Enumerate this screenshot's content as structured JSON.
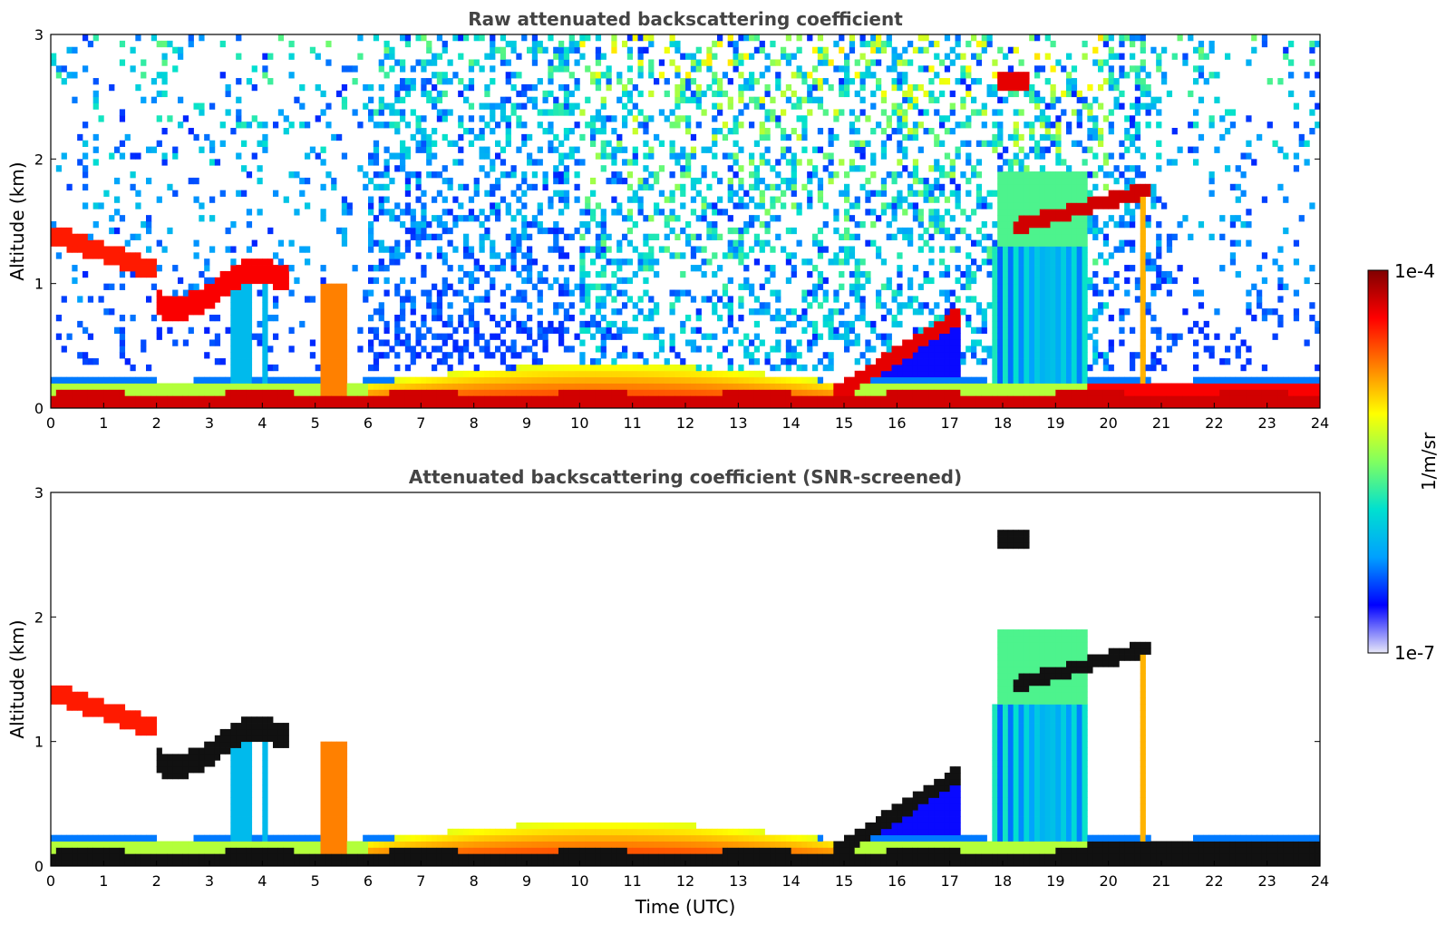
{
  "chart_data": [
    {
      "type": "heatmap",
      "title": "Raw attenuated backscattering coefficient",
      "xlabel": "",
      "ylabel": "Altitude (km)",
      "xlim": [
        0,
        24
      ],
      "ylim": [
        0,
        3
      ],
      "x_ticks": [
        "0",
        "1",
        "2",
        "3",
        "4",
        "5",
        "6",
        "7",
        "8",
        "9",
        "10",
        "11",
        "12",
        "13",
        "14",
        "15",
        "16",
        "17",
        "18",
        "19",
        "20",
        "21",
        "22",
        "23",
        "24"
      ],
      "y_ticks": [
        "0",
        "1",
        "2",
        "3"
      ],
      "grid": false,
      "screened": false
    },
    {
      "type": "heatmap",
      "title": "Attenuated backscattering coefficient (SNR-screened)",
      "xlabel": "Time (UTC)",
      "ylabel": "Altitude (km)",
      "xlim": [
        0,
        24
      ],
      "ylim": [
        0,
        3
      ],
      "x_ticks": [
        "0",
        "1",
        "2",
        "3",
        "4",
        "5",
        "6",
        "7",
        "8",
        "9",
        "10",
        "11",
        "12",
        "13",
        "14",
        "15",
        "16",
        "17",
        "18",
        "19",
        "20",
        "21",
        "22",
        "23",
        "24"
      ],
      "y_ticks": [
        "0",
        "1",
        "2",
        "3"
      ],
      "grid": false,
      "screened": true
    }
  ],
  "colorbar": {
    "label": "1/m/sr",
    "max_label": "1e-4",
    "min_label": "1e-7",
    "colormap": "jet",
    "scale": "log",
    "colors": [
      "#e8e8f8",
      "#0000ff",
      "#00a0ff",
      "#00e0d0",
      "#80ff60",
      "#ffff00",
      "#ff8000",
      "#ff0000",
      "#800000"
    ]
  }
}
